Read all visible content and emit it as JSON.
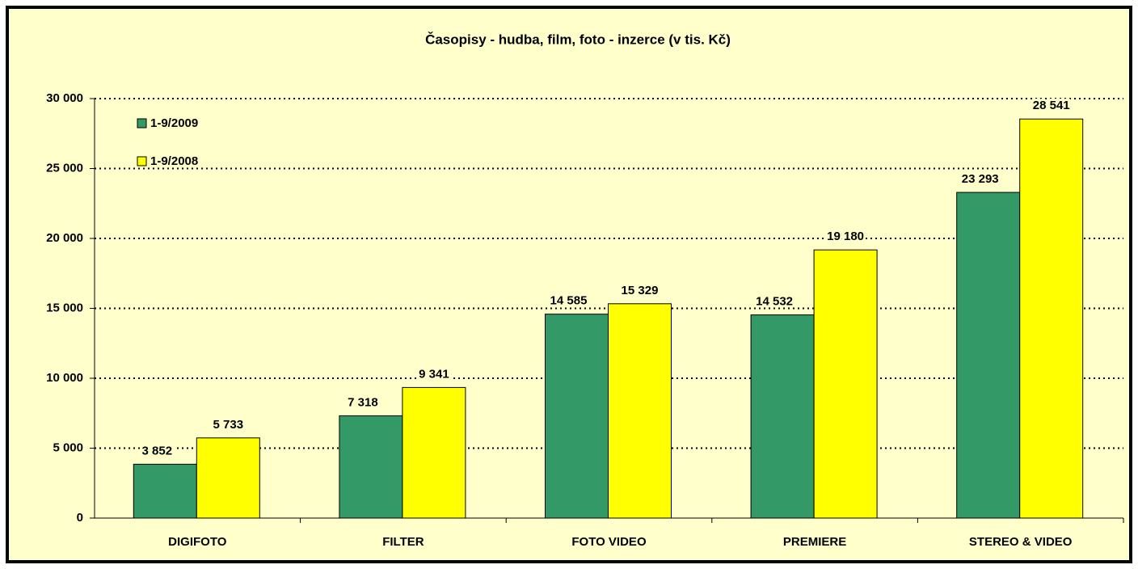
{
  "chart_data": {
    "type": "bar",
    "title": "Časopisy - hudba, film, foto - inzerce (v tis. Kč)",
    "categories": [
      "DIGIFOTO",
      "FILTER",
      "FOTO VIDEO",
      "PREMIERE",
      "STEREO & VIDEO"
    ],
    "series": [
      {
        "name": "1-9/2009",
        "color": "#339966",
        "values": [
          3852,
          7318,
          14585,
          14532,
          23293
        ],
        "value_labels": [
          "3 852",
          "7 318",
          "14 585",
          "14 532",
          "23 293"
        ]
      },
      {
        "name": "1-9/2008",
        "color": "#FFFF00",
        "values": [
          5733,
          9341,
          15329,
          19180,
          28541
        ],
        "value_labels": [
          "5 733",
          "9 341",
          "15 329",
          "19 180",
          "28 541"
        ]
      }
    ],
    "ylim": [
      0,
      30000
    ],
    "yticks": [
      0,
      {
        "value": 5000,
        "label": "5 000"
      },
      {
        "value": 10000,
        "label": "10 000"
      },
      {
        "value": 15000,
        "label": "15 000"
      },
      {
        "value": 20000,
        "label": "20 000"
      },
      {
        "value": 25000,
        "label": "25 000"
      },
      {
        "value": 30000,
        "label": "30 000"
      }
    ],
    "grid": true,
    "legend": "upper left"
  }
}
